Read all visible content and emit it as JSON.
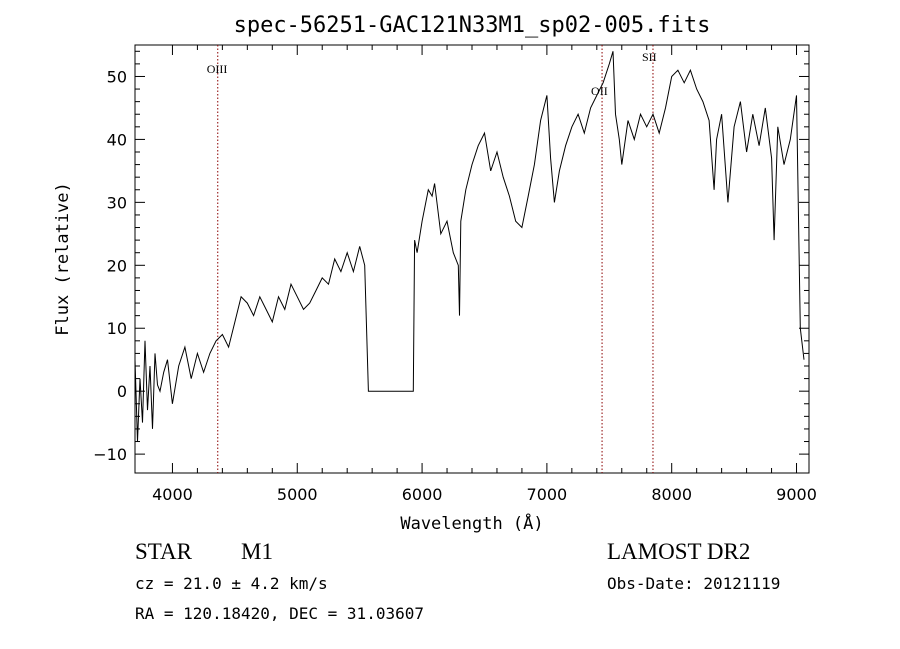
{
  "chart_data": {
    "type": "line",
    "title": "spec-56251-GAC121N33M1_sp02-005.fits",
    "xlabel": "Wavelength (Å)",
    "ylabel": "Flux (relative)",
    "xlim": [
      3700,
      9100
    ],
    "ylim": [
      -13,
      55
    ],
    "xticks": [
      4000,
      5000,
      6000,
      7000,
      8000,
      9000
    ],
    "yticks": [
      -10,
      0,
      10,
      20,
      30,
      40,
      50
    ],
    "xtick_labels": [
      "4000",
      "5000",
      "6000",
      "7000",
      "8000",
      "9000"
    ],
    "ytick_labels": [
      "−10",
      "0",
      "10",
      "20",
      "30",
      "40",
      "50"
    ],
    "grid": false,
    "line_color": "#000000",
    "marker_color": "#8b0000",
    "line_markers": [
      {
        "label": "OIII",
        "x": 4363
      },
      {
        "label": "OII",
        "x": 7442
      },
      {
        "label": "SII",
        "x": 7850
      }
    ],
    "series": [
      {
        "x": [
          3700,
          3720,
          3740,
          3760,
          3780,
          3800,
          3820,
          3840,
          3860,
          3880,
          3900,
          3930,
          3960,
          4000,
          4050,
          4100,
          4150,
          4200,
          4250,
          4300,
          4350,
          4400,
          4450,
          4500,
          4550,
          4600,
          4650,
          4700,
          4750,
          4800,
          4850,
          4900,
          4950,
          5000,
          5050,
          5100,
          5150,
          5200,
          5250,
          5300,
          5350,
          5400,
          5450,
          5500,
          5540,
          5570,
          5580,
          5700,
          5800,
          5930,
          5940,
          5960,
          6000,
          6050,
          6080,
          6100,
          6150,
          6200,
          6250,
          6290,
          6300,
          6310,
          6350,
          6400,
          6450,
          6500,
          6550,
          6600,
          6650,
          6700,
          6750,
          6800,
          6850,
          6900,
          6950,
          7000,
          7030,
          7060,
          7100,
          7150,
          7200,
          7250,
          7300,
          7350,
          7400,
          7450,
          7500,
          7530,
          7550,
          7580,
          7600,
          7650,
          7700,
          7750,
          7800,
          7850,
          7900,
          7950,
          8000,
          8050,
          8100,
          8150,
          8200,
          8250,
          8300,
          8340,
          8360,
          8400,
          8450,
          8500,
          8550,
          8600,
          8650,
          8700,
          8750,
          8800,
          8820,
          8850,
          8900,
          8950,
          9000,
          9030,
          9060
        ],
        "y": [
          5,
          -8,
          2,
          -5,
          8,
          -3,
          4,
          -6,
          6,
          1,
          0,
          3,
          5,
          -2,
          4,
          7,
          2,
          6,
          3,
          6,
          8,
          9,
          7,
          11,
          15,
          14,
          12,
          15,
          13,
          11,
          15,
          13,
          17,
          15,
          13,
          14,
          16,
          18,
          17,
          21,
          19,
          22,
          19,
          23,
          20,
          0,
          0,
          0,
          0,
          0,
          24,
          22,
          27,
          32,
          31,
          33,
          25,
          27,
          22,
          20,
          12,
          27,
          32,
          36,
          39,
          41,
          35,
          38,
          34,
          31,
          27,
          26,
          31,
          36,
          43,
          47,
          37,
          30,
          35,
          39,
          42,
          44,
          41,
          45,
          47,
          49,
          52,
          54,
          44,
          40,
          36,
          43,
          40,
          44,
          42,
          44,
          41,
          45,
          50,
          51,
          49,
          51,
          48,
          46,
          43,
          32,
          40,
          44,
          30,
          42,
          46,
          38,
          44,
          39,
          45,
          37,
          24,
          42,
          36,
          40,
          47,
          10,
          5
        ]
      }
    ]
  },
  "info": {
    "object_class": "STAR",
    "subclass": "M1",
    "survey": "LAMOST DR2",
    "redshift": "cz = 21.0 ± 4.2 km/s",
    "obs_date": "Obs-Date: 20121119",
    "coords": "RA = 120.18420, DEC =  31.03607"
  }
}
